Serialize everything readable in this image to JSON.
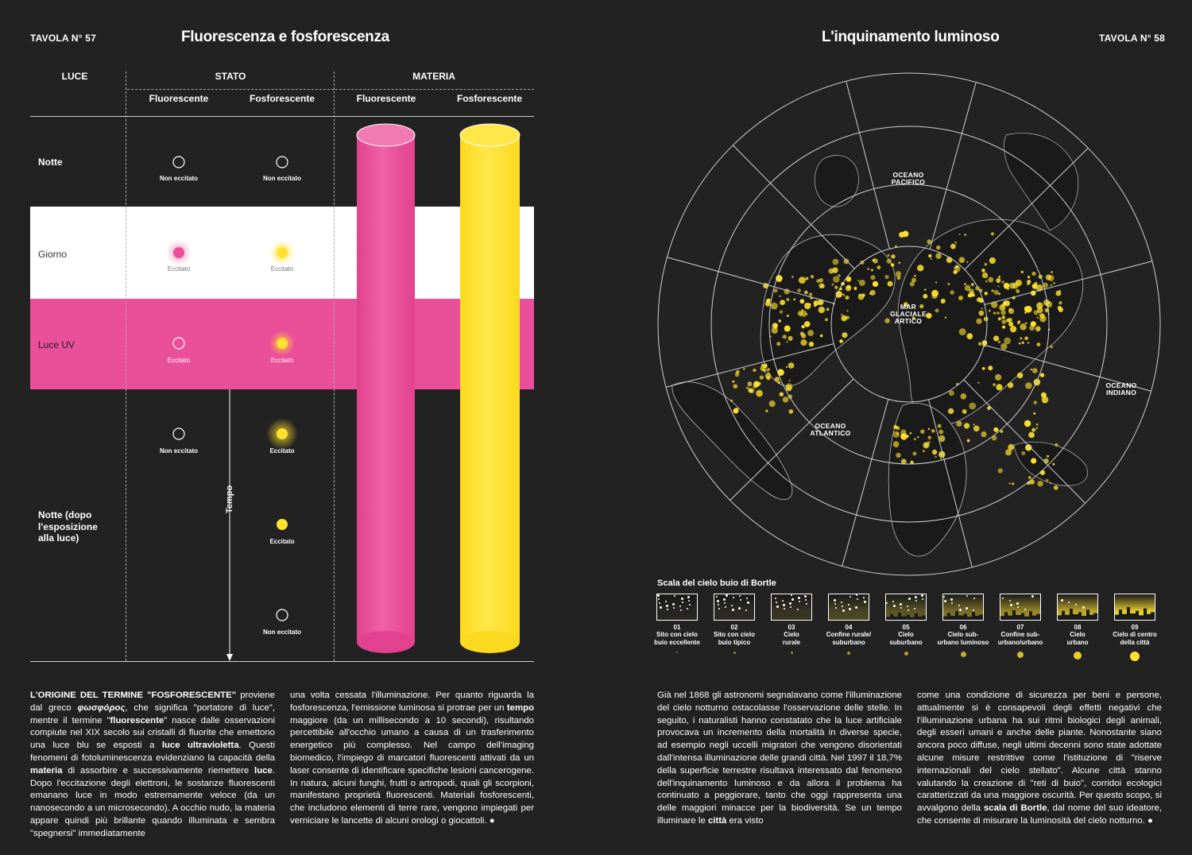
{
  "left_page": {
    "tavola": "TAVOLA N° 57",
    "title": "Fluorescenza e fosforescenza",
    "columns": {
      "luce": "LUCE",
      "stato": "STATO",
      "materia": "MATERIA"
    },
    "subcolumns": {
      "stato_fluo": "Fluorescente",
      "stato_fosfo": "Fosforescente",
      "materia_fluo": "Fluorescente",
      "materia_fosfo": "Fosforescente"
    },
    "rows": {
      "notte": "Notte",
      "giorno": "Giorno",
      "luce_uv": "Luce UV",
      "notte_dopo": "Notte (dopo\nl'esposizione\nalla luce)"
    },
    "dot_labels": {
      "notte_fluo": "Non eccitato",
      "notte_fosfo": "Non eccitato",
      "giorno_fluo": "Eccitato",
      "giorno_fosfo": "Eccitato",
      "uv_fluo": "Eccitato",
      "uv_fosfo": "Eccitato",
      "dopo_fluo": "Non eccitato",
      "dopo_fosfo_1": "Eccitato",
      "dopo_fosfo_2": "Eccitato",
      "dopo_fosfo_3": "Non eccitato"
    },
    "tempo": "Tempo",
    "colors": {
      "magenta": "#ea4f9a",
      "yellow": "#ffe22e",
      "bg": "#222222"
    }
  },
  "right_page": {
    "tavola": "TAVOLA N° 58",
    "title": "L'inquinamento luminoso",
    "map_labels": {
      "pacifico": "OCEANO\nPACIFICO",
      "artico": "MAR\nGLACIALE\nARTICO",
      "atlantico": "OCEANO\nATLANTICO",
      "indiano": "OCEANO\nINDIANO"
    },
    "bortle_title": "Scala del cielo buio di Bortle",
    "bortle": [
      {
        "num": "01",
        "label": "Sito con cielo\nbuio eccellente",
        "level": 0.02
      },
      {
        "num": "02",
        "label": "Sito con cielo\nbuio tipico",
        "level": 0.05
      },
      {
        "num": "03",
        "label": "Cielo\nrurale",
        "level": 0.1
      },
      {
        "num": "04",
        "label": "Confine rurale/\nsuburbano",
        "level": 0.2
      },
      {
        "num": "05",
        "label": "Cielo\nsuburbano",
        "level": 0.3
      },
      {
        "num": "06",
        "label": "Cielo sub-\nurbano luminoso",
        "level": 0.45
      },
      {
        "num": "07",
        "label": "Confine sub-\nurbano/urbano",
        "level": 0.6
      },
      {
        "num": "08",
        "label": "Cielo\nurbano",
        "level": 0.8
      },
      {
        "num": "09",
        "label": "Cielo di centro\ndella città",
        "level": 1.0
      }
    ]
  },
  "text": {
    "col1_intro": "L'ORIGINE DEL TERMINE \"FOSFORESCENTE\"",
    "col1_a": " proviene dal greco ",
    "col1_greek": "φωσφόρος",
    "col1_b": ", che significa \"portatore di luce\", mentre il termine \"",
    "col1_fluo": "fluorescente",
    "col1_c": "\" nasce dalle osservazioni compiute nel XIX secolo sui cristalli di fluorite che emettono una luce blu se esposti a ",
    "col1_uv": "luce ultravioletta",
    "col1_d": ". Questi fenomeni di fotoluminescenza evidenziano la capacità della ",
    "col1_materia": "materia",
    "col1_e": " di assorbire e successivamente riemettere ",
    "col1_luce": "luce",
    "col1_f": ". Dopo l'eccitazione degli elettroni, le sostanze fluorescenti emanano luce in modo estremamente veloce (da un nanosecondo a un microsecondo). A occhio nudo, la materia appare quindi più brillante quando illuminata e sembra \"spegnersi\" immediatamente",
    "col2_a": "una volta cessata l'illuminazione. Per quanto riguarda la fosforescenza, l'emissione luminosa si protrae per un ",
    "col2_tempo": "tempo",
    "col2_b": " maggiore (da un millisecondo a 10 secondi), risultando percettibile all'occhio umano a causa di un trasferimento energetico più complesso. Nel campo dell'imaging biomedico, l'impiego di marcatori fluorescenti attivati da un laser consente di identificare specifiche lesioni cancerogene. In natura, alcuni funghi, frutti o artropodi, quali gli scorpioni, manifestano proprietà fluorescenti. Materiali fosforescenti, che includono elementi di terre rare, vengono impiegati per verniciare le lancette di alcuni orologi o giocattoli. ●",
    "col3_a": "Già nel 1868 gli astronomi segnalavano come l'illuminazione del cielo notturno ostacolasse l'osservazione delle stelle. In seguito, i naturalisti hanno constatato che la luce artificiale provocava un incremento della mortalità in diverse specie, ad esempio negli uccelli migratori che vengono disorientati dall'intensa illuminazione delle grandi città. Nel 1997 il 18,7% della superficie terrestre risultava interessato dal fenomeno dell'inquinamento luminoso e da allora il problema ha continuato a peggiorare, tanto che oggi rappresenta una delle maggiori minacce per la biodiversità. Se un tempo illuminare le ",
    "col3_citta": "città",
    "col3_b": " era visto",
    "col4_a": "come una condizione di sicurezza per beni e persone, attualmente si è consapevoli degli effetti negativi che l'illuminazione urbana ha sui ritmi biologici degli animali, degli esseri umani e anche delle piante. Nonostante siano ancora poco diffuse, negli ultimi decenni sono state adottate alcune misure restrittive come l'istituzione di \"riserve internazionali del cielo stellato\". Alcune città stanno valutando la creazione di \"reti di buio\", corridoi ecologici caratterizzati da una maggiore oscurità. Per questo scopo, si avvalgono della ",
    "col4_bortle": "scala di Bortle",
    "col4_b": ", dal nome del suo ideatore, che consente di misurare la luminosità del cielo notturno. ●"
  }
}
